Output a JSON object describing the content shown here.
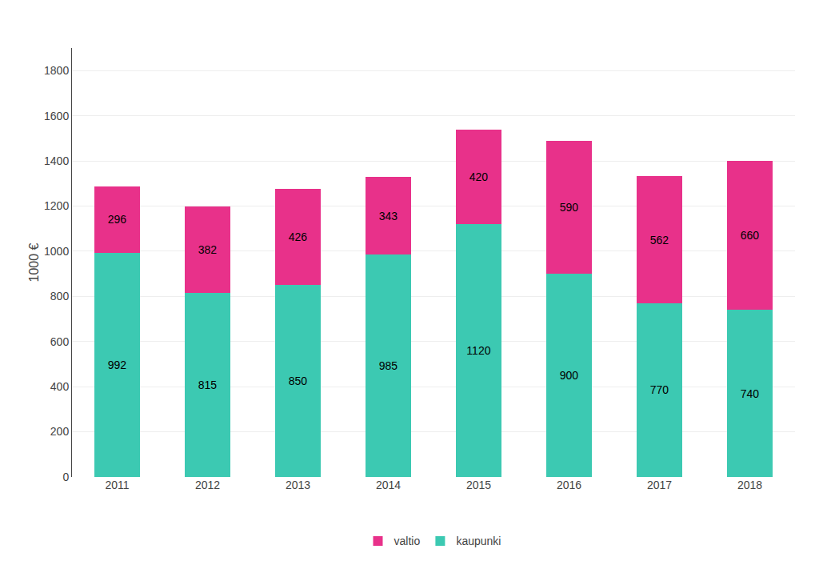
{
  "chart_data": {
    "type": "bar",
    "stacked": true,
    "ylabel": "1000 €",
    "categories": [
      "2011",
      "2012",
      "2013",
      "2014",
      "2015",
      "2016",
      "2017",
      "2018"
    ],
    "series": [
      {
        "name": "kaupunki",
        "color": "#3CC9B2",
        "values": [
          992,
          815,
          850,
          985,
          1120,
          900,
          770,
          740
        ]
      },
      {
        "name": "valtio",
        "color": "#E8318A",
        "values": [
          296,
          382,
          426,
          343,
          420,
          590,
          562,
          660
        ]
      }
    ],
    "ylim": [
      0,
      1900
    ],
    "yticks": [
      0,
      200,
      400,
      600,
      800,
      1000,
      1200,
      1400,
      1600,
      1800
    ],
    "grid": true,
    "data_labels": true,
    "legend": "bottom"
  }
}
